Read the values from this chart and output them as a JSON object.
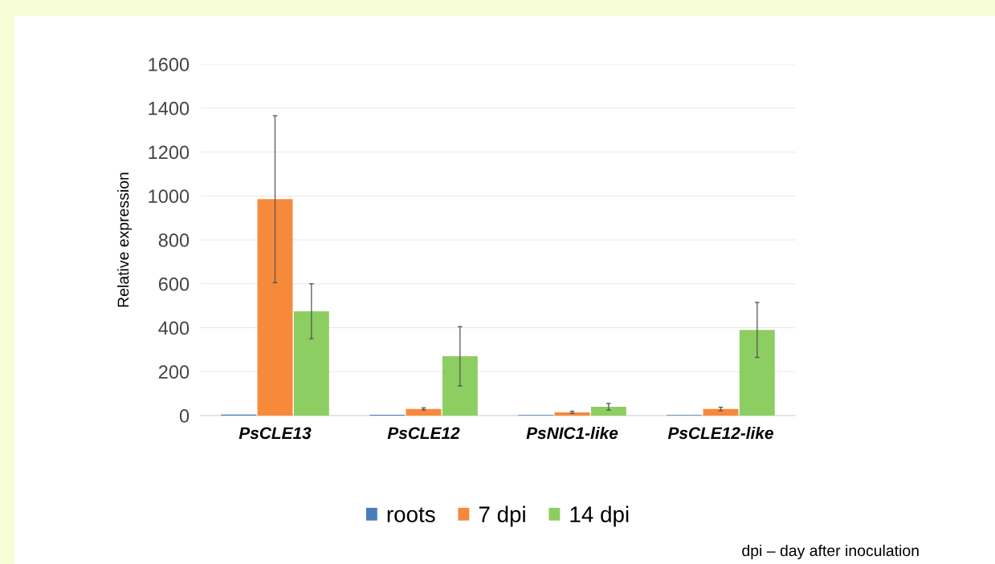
{
  "chart_data": {
    "type": "bar",
    "ylabel": "Relative expression",
    "categories": [
      "PsCLE13",
      "PsCLE12",
      "PsNIC1-like",
      "PsCLE12-like"
    ],
    "series": [
      {
        "name": "roots",
        "color": "#4a7ebb",
        "values": [
          5,
          4,
          3,
          3
        ]
      },
      {
        "name": "7 dpi",
        "color": "#f7893b",
        "values": [
          985,
          30,
          15,
          30
        ],
        "errors": [
          380,
          5,
          5,
          8
        ]
      },
      {
        "name": "14 dpi",
        "color": "#8dce62",
        "values": [
          475,
          270,
          40,
          390
        ],
        "errors": [
          125,
          135,
          15,
          125
        ]
      }
    ],
    "ylim": [
      0,
      1600
    ],
    "yticks": [
      0,
      200,
      400,
      600,
      800,
      1000,
      1200,
      1400,
      1600
    ],
    "grid": "y",
    "legend": "bottom",
    "annotations": [
      "dpi – day after inoculation"
    ]
  }
}
